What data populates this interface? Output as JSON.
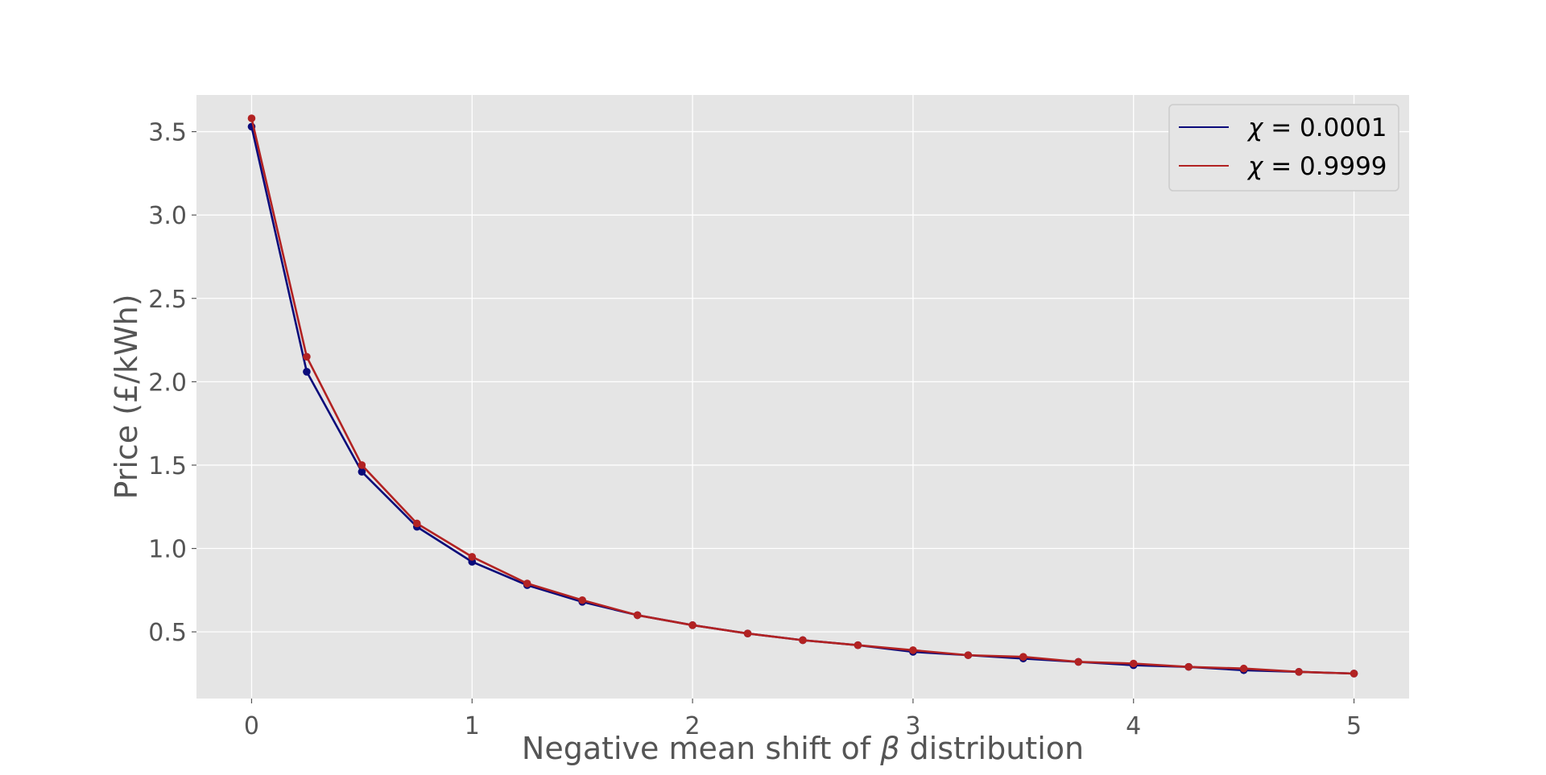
{
  "chart_data": {
    "type": "line",
    "title": "",
    "xlabel": "Negative mean shift of β distribution",
    "xlabel_prefix": "Negative mean shift of ",
    "xlabel_symbol": "β",
    "xlabel_suffix": " distribution",
    "ylabel": "Price (£/kWh)",
    "xlim": [
      -0.25,
      5.25
    ],
    "ylim": [
      0.1,
      3.72
    ],
    "xticks": [
      0,
      1,
      2,
      3,
      4,
      5
    ],
    "xtick_labels": [
      "0",
      "1",
      "2",
      "3",
      "4",
      "5"
    ],
    "yticks": [
      0.5,
      1.0,
      1.5,
      2.0,
      2.5,
      3.0,
      3.5
    ],
    "ytick_labels": [
      "0.5",
      "1.0",
      "1.5",
      "2.0",
      "2.5",
      "3.0",
      "3.5"
    ],
    "grid": true,
    "legend_position": "top-right",
    "x": [
      0,
      0.25,
      0.5,
      0.75,
      1.0,
      1.25,
      1.5,
      1.75,
      2.0,
      2.25,
      2.5,
      2.75,
      3.0,
      3.25,
      3.5,
      3.75,
      4.0,
      4.25,
      4.5,
      4.75,
      5.0
    ],
    "series": [
      {
        "name": "χ = 0.0001",
        "symbol": "χ",
        "value_text": " = 0.0001",
        "color": "#0a0a7a",
        "values": [
          3.53,
          2.06,
          1.46,
          1.13,
          0.92,
          0.78,
          0.68,
          0.6,
          0.54,
          0.49,
          0.45,
          0.42,
          0.38,
          0.36,
          0.34,
          0.32,
          0.3,
          0.29,
          0.27,
          0.26,
          0.25
        ]
      },
      {
        "name": "χ = 0.9999",
        "symbol": "χ",
        "value_text": " = 0.9999",
        "color": "#b22222",
        "values": [
          3.58,
          2.15,
          1.5,
          1.15,
          0.95,
          0.79,
          0.69,
          0.6,
          0.54,
          0.49,
          0.45,
          0.42,
          0.39,
          0.36,
          0.35,
          0.32,
          0.31,
          0.29,
          0.28,
          0.26,
          0.25
        ]
      }
    ],
    "colors": {
      "plot_background": "#e5e5e5",
      "grid": "#ffffff",
      "text": "#555555",
      "legend_background": "#e5e5e5",
      "legend_border": "#cccccc"
    }
  }
}
